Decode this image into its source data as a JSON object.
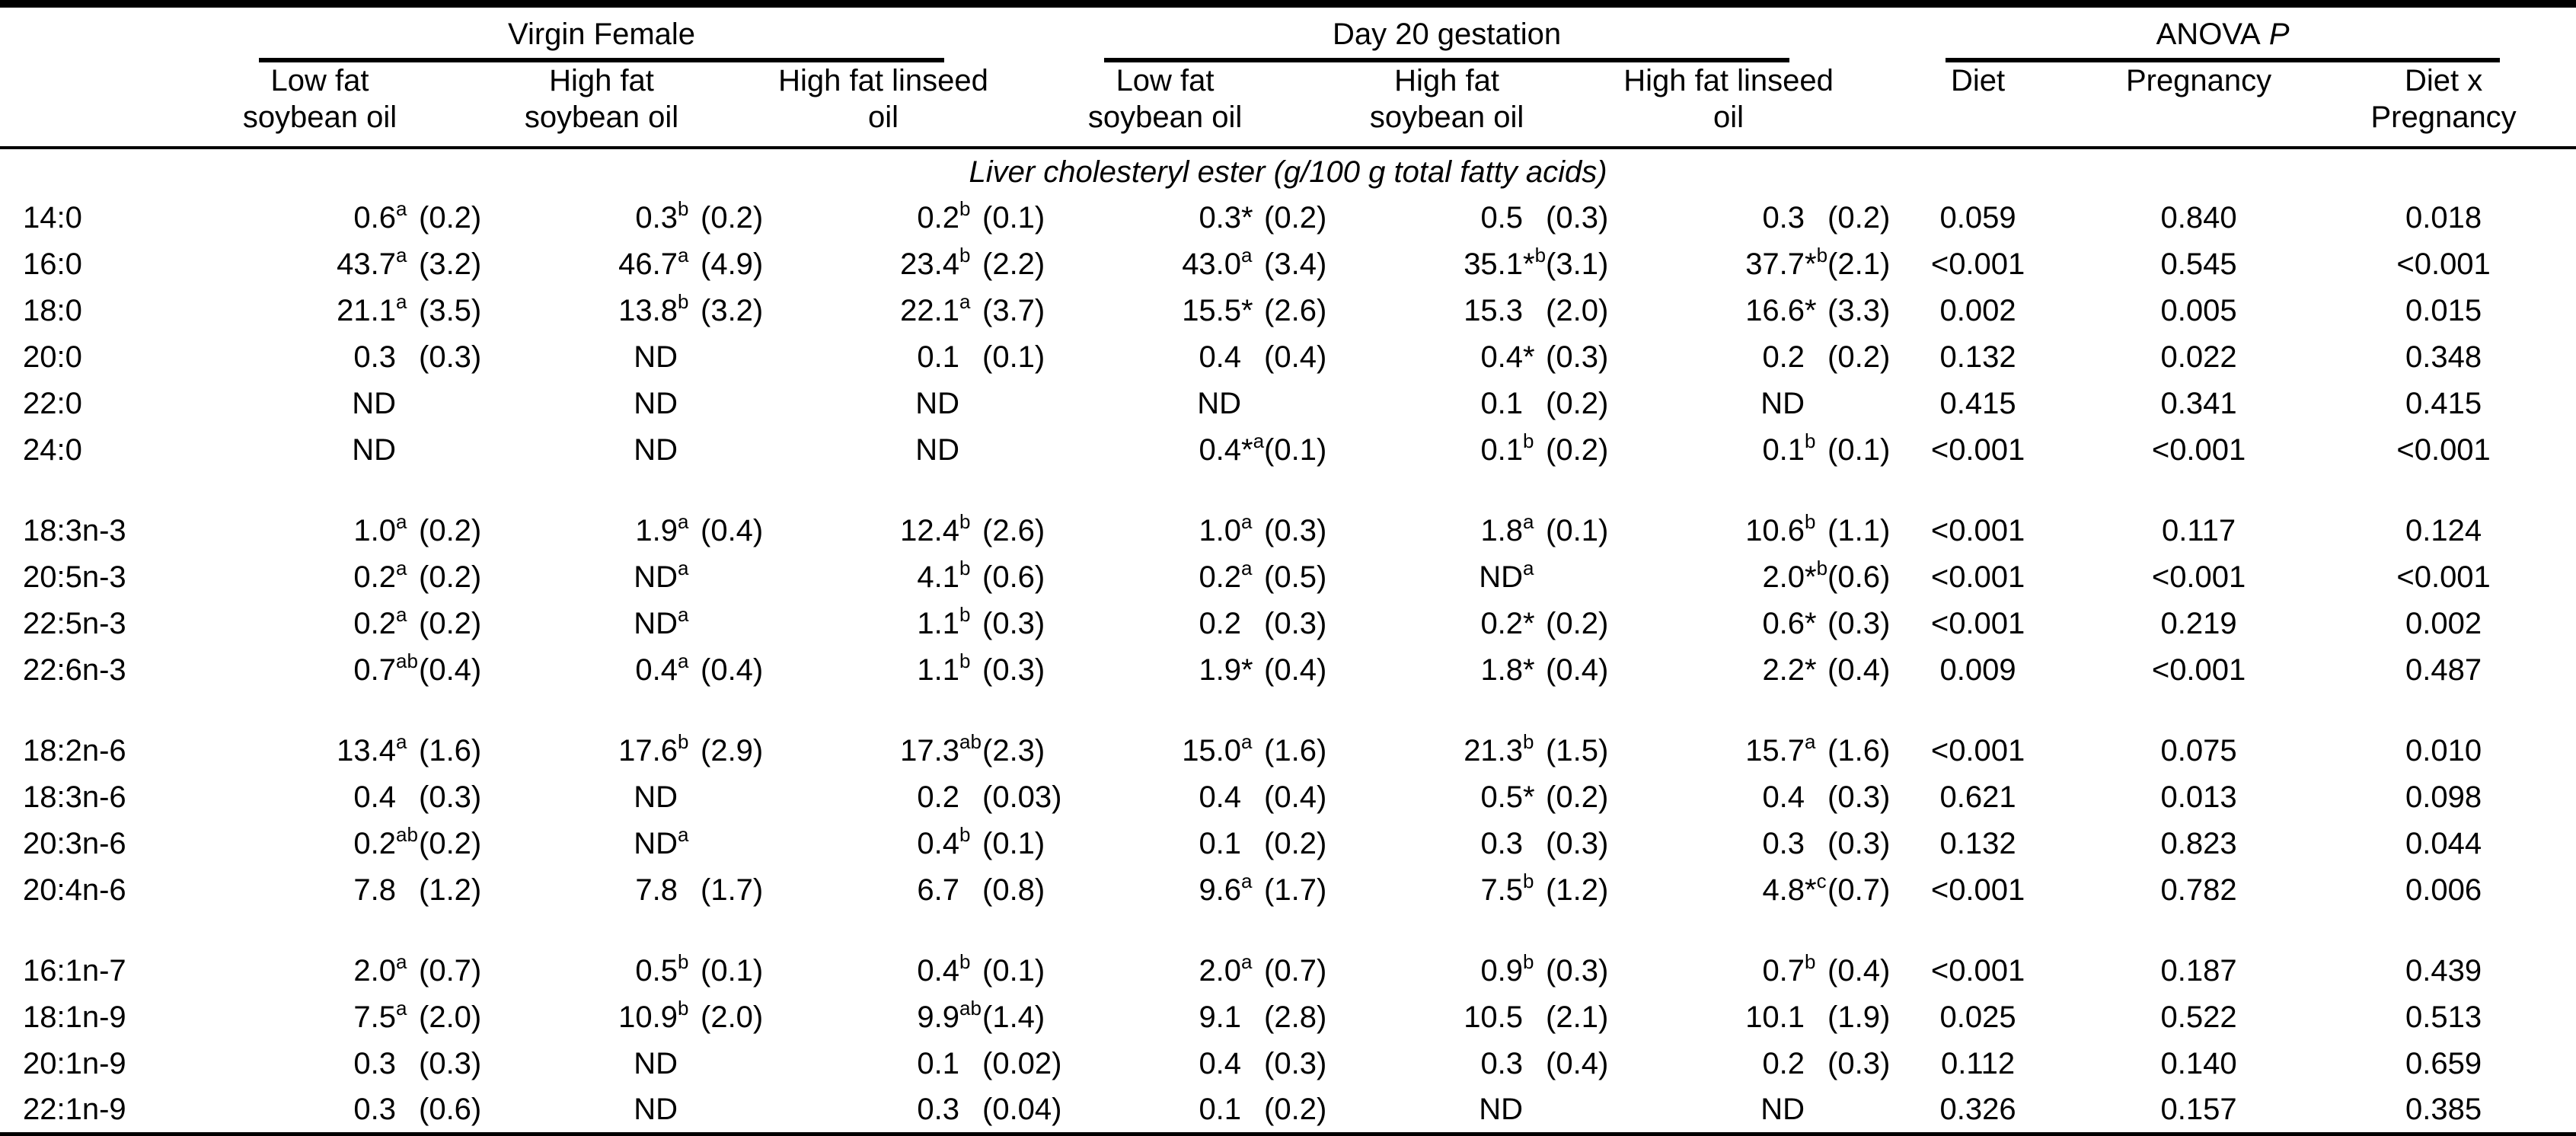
{
  "colors": {
    "text": "#000000",
    "background": "#ffffff",
    "rule": "#000000"
  },
  "section_title": "Liver cholesteryl ester (g/100 g total fatty acids)",
  "header": {
    "group1": "Virgin Female",
    "group2": "Day 20 gestation",
    "anova_label": "ANOVA",
    "anova_p": "P",
    "diet_cols": [
      {
        "line1": "Low fat",
        "line2": "soybean oil"
      },
      {
        "line1": "High fat",
        "line2": "soybean oil"
      },
      {
        "line1": "High fat linseed",
        "line2": "oil"
      },
      {
        "line1": "Low fat",
        "line2": "soybean oil"
      },
      {
        "line1": "High fat",
        "line2": "soybean oil"
      },
      {
        "line1": "High fat linseed",
        "line2": "oil"
      }
    ],
    "anova_cols": [
      {
        "line1": "Diet",
        "line2": ""
      },
      {
        "line1": "Pregnancy",
        "line2": ""
      },
      {
        "line1": "Diet x",
        "line2": "Pregnancy"
      }
    ]
  },
  "blocks": [
    [
      {
        "label": "14:0",
        "cells": [
          {
            "v": "0.6",
            "sup": "a",
            "sd": "(0.2)"
          },
          {
            "v": "0.3",
            "sup": "b",
            "sd": "(0.2)"
          },
          {
            "v": "0.2",
            "sup": "b",
            "sd": "(0.1)"
          },
          {
            "v": "0.3",
            "star": "*",
            "sd": "(0.2)"
          },
          {
            "v": "0.5",
            "sd": "(0.3)"
          },
          {
            "v": "0.3",
            "sd": "(0.2)"
          }
        ],
        "anova": [
          "0.059",
          "0.840",
          "0.018"
        ]
      },
      {
        "label": "16:0",
        "cells": [
          {
            "v": "43.7",
            "sup": "a",
            "sd": "(3.2)"
          },
          {
            "v": "46.7",
            "sup": "a",
            "sd": "(4.9)"
          },
          {
            "v": "23.4",
            "sup": "b",
            "sd": "(2.2)"
          },
          {
            "v": "43.0",
            "sup": "a",
            "sd": "(3.4)"
          },
          {
            "v": "35.1",
            "star": "*",
            "sup": "b",
            "sd": "(3.1)"
          },
          {
            "v": "37.7",
            "star": "*",
            "sup": "b",
            "sd": "(2.1)"
          }
        ],
        "anova": [
          "<0.001",
          "0.545",
          "<0.001"
        ]
      },
      {
        "label": "18:0",
        "cells": [
          {
            "v": "21.1",
            "sup": "a",
            "sd": "(3.5)"
          },
          {
            "v": "13.8",
            "sup": "b",
            "sd": "(3.2)"
          },
          {
            "v": "22.1",
            "sup": "a",
            "sd": "(3.7)"
          },
          {
            "v": "15.5",
            "star": "*",
            "sd": "(2.6)"
          },
          {
            "v": "15.3",
            "sd": "(2.0)"
          },
          {
            "v": "16.6",
            "star": "*",
            "sd": "(3.3)"
          }
        ],
        "anova": [
          "0.002",
          "0.005",
          "0.015"
        ]
      },
      {
        "label": "20:0",
        "cells": [
          {
            "v": "0.3",
            "sd": "(0.3)"
          },
          {
            "v": "ND"
          },
          {
            "v": "0.1",
            "sd": "(0.1)"
          },
          {
            "v": "0.4",
            "sd": "(0.4)"
          },
          {
            "v": "0.4",
            "star": "*",
            "sd": "(0.3)"
          },
          {
            "v": "0.2",
            "sd": "(0.2)"
          }
        ],
        "anova": [
          "0.132",
          "0.022",
          "0.348"
        ]
      },
      {
        "label": "22:0",
        "cells": [
          {
            "v": "ND"
          },
          {
            "v": "ND"
          },
          {
            "v": "ND"
          },
          {
            "v": "ND"
          },
          {
            "v": "0.1",
            "sd": "(0.2)"
          },
          {
            "v": "ND"
          }
        ],
        "anova": [
          "0.415",
          "0.341",
          "0.415"
        ]
      },
      {
        "label": "24:0",
        "cells": [
          {
            "v": "ND"
          },
          {
            "v": "ND"
          },
          {
            "v": "ND"
          },
          {
            "v": "0.4",
            "star": "*",
            "sup": "a",
            "sd": "(0.1)"
          },
          {
            "v": "0.1",
            "sup": "b",
            "sd": "(0.2)"
          },
          {
            "v": "0.1",
            "sup": "b",
            "sd": "(0.1)"
          }
        ],
        "anova": [
          "<0.001",
          "<0.001",
          "<0.001"
        ]
      }
    ],
    [
      {
        "label": "18:3n-3",
        "cells": [
          {
            "v": "1.0",
            "sup": "a",
            "sd": "(0.2)"
          },
          {
            "v": "1.9",
            "sup": "a",
            "sd": "(0.4)"
          },
          {
            "v": "12.4",
            "sup": "b",
            "sd": "(2.6)"
          },
          {
            "v": "1.0",
            "sup": "a",
            "sd": "(0.3)"
          },
          {
            "v": "1.8",
            "sup": "a",
            "sd": "(0.1)"
          },
          {
            "v": "10.6",
            "sup": "b",
            "sd": "(1.1)"
          }
        ],
        "anova": [
          "<0.001",
          "0.117",
          "0.124"
        ]
      },
      {
        "label": "20:5n-3",
        "cells": [
          {
            "v": "0.2",
            "sup": "a",
            "sd": "(0.2)"
          },
          {
            "v": "ND",
            "sup": "a"
          },
          {
            "v": "4.1",
            "sup": "b",
            "sd": "(0.6)"
          },
          {
            "v": "0.2",
            "sup": "a",
            "sd": "(0.5)"
          },
          {
            "v": "ND",
            "sup": "a"
          },
          {
            "v": "2.0",
            "star": "*",
            "sup": "b",
            "sd": "(0.6)"
          }
        ],
        "anova": [
          "<0.001",
          "<0.001",
          "<0.001"
        ]
      },
      {
        "label": "22:5n-3",
        "cells": [
          {
            "v": "0.2",
            "sup": "a",
            "sd": "(0.2)"
          },
          {
            "v": "ND",
            "sup": "a"
          },
          {
            "v": "1.1",
            "sup": "b",
            "sd": "(0.3)"
          },
          {
            "v": "0.2",
            "sd": "(0.3)"
          },
          {
            "v": "0.2",
            "star": "*",
            "sd": "(0.2)"
          },
          {
            "v": "0.6",
            "star": "*",
            "sd": "(0.3)"
          }
        ],
        "anova": [
          "<0.001",
          "0.219",
          "0.002"
        ]
      },
      {
        "label": "22:6n-3",
        "cells": [
          {
            "v": "0.7",
            "sup": "ab",
            "sd": "(0.4)"
          },
          {
            "v": "0.4",
            "sup": "a",
            "sd": "(0.4)"
          },
          {
            "v": "1.1",
            "sup": "b",
            "sd": "(0.3)"
          },
          {
            "v": "1.9",
            "star": "*",
            "sd": "(0.4)"
          },
          {
            "v": "1.8",
            "star": "*",
            "sd": "(0.4)"
          },
          {
            "v": "2.2",
            "star": "*",
            "sd": "(0.4)"
          }
        ],
        "anova": [
          "0.009",
          "<0.001",
          "0.487"
        ]
      }
    ],
    [
      {
        "label": "18:2n-6",
        "cells": [
          {
            "v": "13.4",
            "sup": "a",
            "sd": "(1.6)"
          },
          {
            "v": "17.6",
            "sup": "b",
            "sd": "(2.9)"
          },
          {
            "v": "17.3",
            "sup": "ab",
            "sd": "(2.3)"
          },
          {
            "v": "15.0",
            "sup": "a",
            "sd": "(1.6)"
          },
          {
            "v": "21.3",
            "sup": "b",
            "sd": "(1.5)"
          },
          {
            "v": "15.7",
            "sup": "a",
            "sd": "(1.6)"
          }
        ],
        "anova": [
          "<0.001",
          "0.075",
          "0.010"
        ]
      },
      {
        "label": "18:3n-6",
        "cells": [
          {
            "v": "0.4",
            "sd": "(0.3)"
          },
          {
            "v": "ND"
          },
          {
            "v": "0.2",
            "sd": "(0.03)"
          },
          {
            "v": "0.4",
            "sd": "(0.4)"
          },
          {
            "v": "0.5",
            "star": "*",
            "sd": "(0.2)"
          },
          {
            "v": "0.4",
            "sd": "(0.3)"
          }
        ],
        "anova": [
          "0.621",
          "0.013",
          "0.098"
        ]
      },
      {
        "label": "20:3n-6",
        "cells": [
          {
            "v": "0.2",
            "sup": "ab",
            "sd": "(0.2)"
          },
          {
            "v": "ND",
            "sup": "a"
          },
          {
            "v": "0.4",
            "sup": "b",
            "sd": "(0.1)"
          },
          {
            "v": "0.1",
            "sd": "(0.2)"
          },
          {
            "v": "0.3",
            "sd": "(0.3)"
          },
          {
            "v": "0.3",
            "sd": "(0.3)"
          }
        ],
        "anova": [
          "0.132",
          "0.823",
          "0.044"
        ]
      },
      {
        "label": "20:4n-6",
        "cells": [
          {
            "v": "7.8",
            "sd": "(1.2)"
          },
          {
            "v": "7.8",
            "sd": "(1.7)"
          },
          {
            "v": "6.7",
            "sd": "(0.8)"
          },
          {
            "v": "9.6",
            "sup": "a",
            "sd": "(1.7)"
          },
          {
            "v": "7.5",
            "sup": "b",
            "sd": "(1.2)"
          },
          {
            "v": "4.8",
            "star": "*",
            "sup": "c",
            "sd": "(0.7)"
          }
        ],
        "anova": [
          "<0.001",
          "0.782",
          "0.006"
        ]
      }
    ],
    [
      {
        "label": "16:1n-7",
        "cells": [
          {
            "v": "2.0",
            "sup": "a",
            "sd": "(0.7)"
          },
          {
            "v": "0.5",
            "sup": "b",
            "sd": "(0.1)"
          },
          {
            "v": "0.4",
            "sup": "b",
            "sd": "(0.1)"
          },
          {
            "v": "2.0",
            "sup": "a",
            "sd": "(0.7)"
          },
          {
            "v": "0.9",
            "sup": "b",
            "sd": "(0.3)"
          },
          {
            "v": "0.7",
            "sup": "b",
            "sd": "(0.4)"
          }
        ],
        "anova": [
          "<0.001",
          "0.187",
          "0.439"
        ]
      },
      {
        "label": "18:1n-9",
        "cells": [
          {
            "v": "7.5",
            "sup": "a",
            "sd": "(2.0)"
          },
          {
            "v": "10.9",
            "sup": "b",
            "sd": "(2.0)"
          },
          {
            "v": "9.9",
            "sup": "ab",
            "sd": "(1.4)"
          },
          {
            "v": "9.1",
            "sd": "(2.8)"
          },
          {
            "v": "10.5",
            "sd": "(2.1)"
          },
          {
            "v": "10.1",
            "sd": "(1.9)"
          }
        ],
        "anova": [
          "0.025",
          "0.522",
          "0.513"
        ]
      },
      {
        "label": "20:1n-9",
        "cells": [
          {
            "v": "0.3",
            "sd": "(0.3)"
          },
          {
            "v": "ND"
          },
          {
            "v": "0.1",
            "sd": "(0.02)"
          },
          {
            "v": "0.4",
            "sd": "(0.3)"
          },
          {
            "v": "0.3",
            "sd": "(0.4)"
          },
          {
            "v": "0.2",
            "sd": "(0.3)"
          }
        ],
        "anova": [
          "0.112",
          "0.140",
          "0.659"
        ]
      },
      {
        "label": "22:1n-9",
        "cells": [
          {
            "v": "0.3",
            "sd": "(0.6)"
          },
          {
            "v": "ND"
          },
          {
            "v": "0.3",
            "sd": "(0.04)"
          },
          {
            "v": "0.1",
            "sd": "(0.2)"
          },
          {
            "v": "ND"
          },
          {
            "v": "ND"
          }
        ],
        "anova": [
          "0.326",
          "0.157",
          "0.385"
        ]
      }
    ]
  ]
}
